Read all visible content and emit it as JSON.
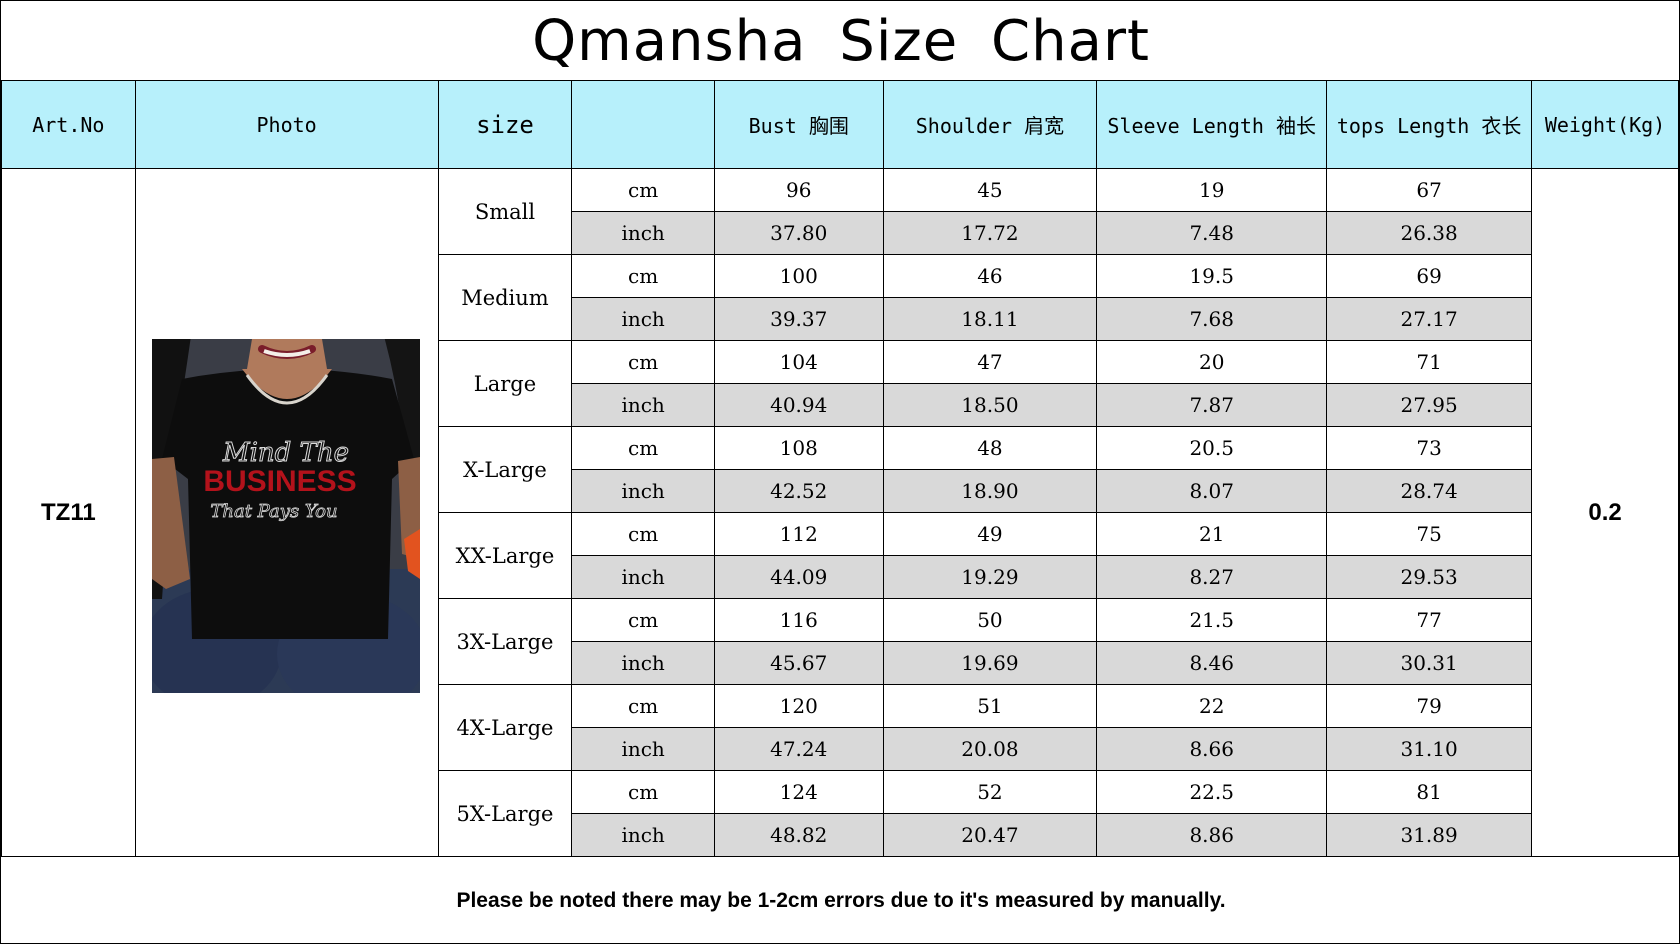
{
  "title": "Qmansha  Size  Chart",
  "headers": {
    "art_no": "Art.No",
    "photo": "Photo",
    "size": "size",
    "unit": "",
    "bust": "Bust 胸围",
    "shoulder": "Shoulder 肩宽",
    "sleeve": "Sleeve Length 袖长",
    "tops_length": "tops Length 衣长",
    "weight": "Weight(Kg)"
  },
  "art_no": "TZ11",
  "weight": "0.2",
  "photo": {
    "text_line1": "Mind The",
    "text_line2": "BUSINESS",
    "text_line3": "That Pays You",
    "shirt_color": "#0d0d0d",
    "accent_red": "#b3121b"
  },
  "sizes": [
    {
      "name": "Small",
      "cm": {
        "unit": "cm",
        "bust": "96",
        "shoulder": "45",
        "sleeve": "19",
        "length": "67"
      },
      "inch": {
        "unit": "inch",
        "bust": "37.80",
        "shoulder": "17.72",
        "sleeve": "7.48",
        "length": "26.38"
      }
    },
    {
      "name": "Medium",
      "cm": {
        "unit": "cm",
        "bust": "100",
        "shoulder": "46",
        "sleeve": "19.5",
        "length": "69"
      },
      "inch": {
        "unit": "inch",
        "bust": "39.37",
        "shoulder": "18.11",
        "sleeve": "7.68",
        "length": "27.17"
      }
    },
    {
      "name": "Large",
      "cm": {
        "unit": "cm",
        "bust": "104",
        "shoulder": "47",
        "sleeve": "20",
        "length": "71"
      },
      "inch": {
        "unit": "inch",
        "bust": "40.94",
        "shoulder": "18.50",
        "sleeve": "7.87",
        "length": "27.95"
      }
    },
    {
      "name": "X-Large",
      "cm": {
        "unit": "cm",
        "bust": "108",
        "shoulder": "48",
        "sleeve": "20.5",
        "length": "73"
      },
      "inch": {
        "unit": "inch",
        "bust": "42.52",
        "shoulder": "18.90",
        "sleeve": "8.07",
        "length": "28.74"
      }
    },
    {
      "name": "XX-Large",
      "cm": {
        "unit": "cm",
        "bust": "112",
        "shoulder": "49",
        "sleeve": "21",
        "length": "75"
      },
      "inch": {
        "unit": "inch",
        "bust": "44.09",
        "shoulder": "19.29",
        "sleeve": "8.27",
        "length": "29.53"
      }
    },
    {
      "name": "3X-Large",
      "cm": {
        "unit": "cm",
        "bust": "116",
        "shoulder": "50",
        "sleeve": "21.5",
        "length": "77"
      },
      "inch": {
        "unit": "inch",
        "bust": "45.67",
        "shoulder": "19.69",
        "sleeve": "8.46",
        "length": "30.31"
      }
    },
    {
      "name": "4X-Large",
      "cm": {
        "unit": "cm",
        "bust": "120",
        "shoulder": "51",
        "sleeve": "22",
        "length": "79"
      },
      "inch": {
        "unit": "inch",
        "bust": "47.24",
        "shoulder": "20.08",
        "sleeve": "8.66",
        "length": "31.10"
      }
    },
    {
      "name": "5X-Large",
      "cm": {
        "unit": "cm",
        "bust": "124",
        "shoulder": "52",
        "sleeve": "22.5",
        "length": "81"
      },
      "inch": {
        "unit": "inch",
        "bust": "48.82",
        "shoulder": "20.47",
        "sleeve": "8.86",
        "length": "31.89"
      }
    }
  ],
  "note": "Please be noted there may be 1-2cm errors due to it's measured by manually."
}
